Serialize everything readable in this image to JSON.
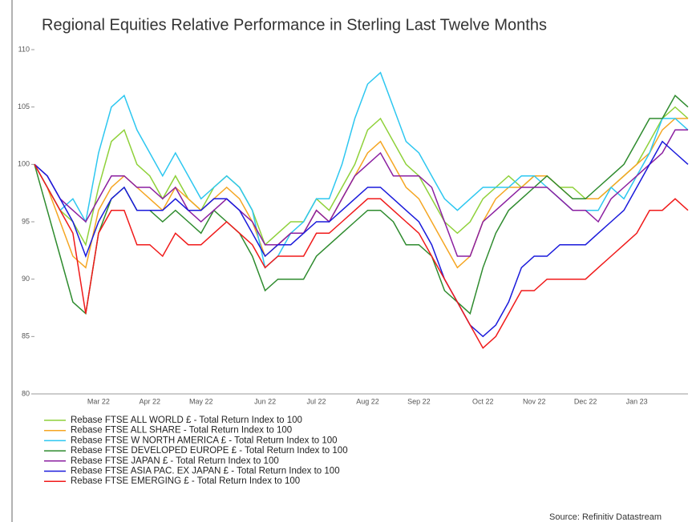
{
  "chart_data": {
    "type": "line",
    "title": "Regional Equities Relative Performance in Sterling Last Twelve Months",
    "source": "Source: Refinitiv Datastream",
    "categories": [
      null,
      null,
      null,
      null,
      null,
      "Mar 22",
      null,
      null,
      null,
      "Apr 22",
      null,
      null,
      null,
      "May 22",
      null,
      null,
      null,
      null,
      "Jun 22",
      null,
      null,
      null,
      "Jul 22",
      null,
      null,
      null,
      "Aug 22",
      null,
      null,
      null,
      "Sep 22",
      null,
      null,
      null,
      null,
      "Oct 22",
      null,
      null,
      null,
      "Nov 22",
      null,
      null,
      null,
      "Dec 22",
      null,
      null,
      null,
      "Jan 23",
      null,
      null,
      null,
      null
    ],
    "ylim": [
      80,
      110
    ],
    "yticks": [
      80,
      85,
      90,
      95,
      100,
      105,
      110
    ],
    "grid": false,
    "series": [
      {
        "name": "Rebase FTSE ALL WORLD £ - Total Return Index to 100",
        "color": "#8fd13a",
        "values": [
          100,
          98,
          96,
          95,
          93,
          98,
          102,
          103,
          100,
          99,
          97,
          99,
          97,
          96,
          98,
          99,
          98,
          96,
          93,
          94,
          95,
          95,
          97,
          96,
          98,
          100,
          103,
          104,
          102,
          100,
          99,
          97,
          95,
          94,
          95,
          97,
          98,
          99,
          98,
          99,
          99,
          98,
          98,
          97,
          97,
          98,
          99,
          100,
          102,
          104,
          105,
          104
        ]
      },
      {
        "name": "Rebase FTSE ALL SHARE - Total Return Index to 100",
        "color": "#f5a623",
        "values": [
          100,
          98,
          95,
          92,
          91,
          96,
          98,
          99,
          98,
          97,
          96,
          98,
          97,
          96,
          97,
          98,
          97,
          95,
          92,
          93,
          94,
          94,
          96,
          95,
          97,
          99,
          101,
          102,
          100,
          98,
          97,
          95,
          93,
          91,
          92,
          95,
          97,
          98,
          98,
          99,
          99,
          98,
          97,
          97,
          97,
          98,
          99,
          100,
          101,
          103,
          104,
          104
        ]
      },
      {
        "name": "Rebase FTSE W NORTH AMERICA £ - Total Return Index to 100",
        "color": "#2dc7f0",
        "values": [
          100,
          98,
          96,
          97,
          95,
          101,
          105,
          106,
          103,
          101,
          99,
          101,
          99,
          97,
          98,
          99,
          98,
          96,
          91,
          92,
          94,
          95,
          97,
          97,
          100,
          104,
          107,
          108,
          105,
          102,
          101,
          99,
          97,
          96,
          97,
          98,
          98,
          98,
          99,
          99,
          98,
          97,
          96,
          96,
          96,
          98,
          97,
          99,
          101,
          104,
          104,
          103
        ]
      },
      {
        "name": "Rebase FTSE DEVELOPED EUROPE £ - Total Return Index to 100",
        "color": "#2e8b2e",
        "values": [
          100,
          96,
          92,
          88,
          87,
          94,
          97,
          98,
          96,
          96,
          95,
          96,
          95,
          94,
          96,
          95,
          94,
          92,
          89,
          90,
          90,
          90,
          92,
          93,
          94,
          95,
          96,
          96,
          95,
          93,
          93,
          92,
          89,
          88,
          87,
          91,
          94,
          96,
          97,
          98,
          99,
          98,
          97,
          97,
          98,
          99,
          100,
          102,
          104,
          104,
          106,
          105
        ]
      },
      {
        "name": "Rebase FTSE JAPAN £ - Total Return Index to 100",
        "color": "#8b1fa0",
        "values": [
          100,
          99,
          97,
          96,
          95,
          97,
          99,
          99,
          98,
          98,
          97,
          98,
          96,
          95,
          96,
          97,
          96,
          95,
          93,
          93,
          94,
          94,
          96,
          95,
          97,
          99,
          100,
          101,
          99,
          99,
          99,
          98,
          95,
          92,
          92,
          95,
          96,
          97,
          98,
          98,
          98,
          97,
          96,
          96,
          95,
          97,
          98,
          99,
          100,
          101,
          103,
          103
        ]
      },
      {
        "name": "Rebase FTSE ASIA PAC. EX JAPAN £ - Total Return Index to 100",
        "color": "#1a1adb",
        "values": [
          100,
          99,
          97,
          95,
          92,
          95,
          97,
          98,
          96,
          96,
          96,
          97,
          96,
          96,
          97,
          97,
          96,
          94,
          92,
          93,
          93,
          94,
          95,
          95,
          96,
          97,
          98,
          98,
          97,
          96,
          95,
          93,
          90,
          88,
          86,
          85,
          86,
          88,
          91,
          92,
          92,
          93,
          93,
          93,
          94,
          95,
          96,
          98,
          100,
          102,
          101,
          100
        ]
      },
      {
        "name": "Rebase FTSE EMERGING £ - Total Return Index to 100",
        "color": "#f01a1a",
        "values": [
          100,
          98,
          96,
          94,
          87,
          94,
          96,
          96,
          93,
          93,
          92,
          94,
          93,
          93,
          94,
          95,
          94,
          93,
          91,
          92,
          92,
          92,
          94,
          94,
          95,
          96,
          97,
          97,
          96,
          95,
          94,
          92,
          90,
          88,
          86,
          84,
          85,
          87,
          89,
          89,
          90,
          90,
          90,
          90,
          91,
          92,
          93,
          94,
          96,
          96,
          97,
          96
        ]
      }
    ]
  }
}
